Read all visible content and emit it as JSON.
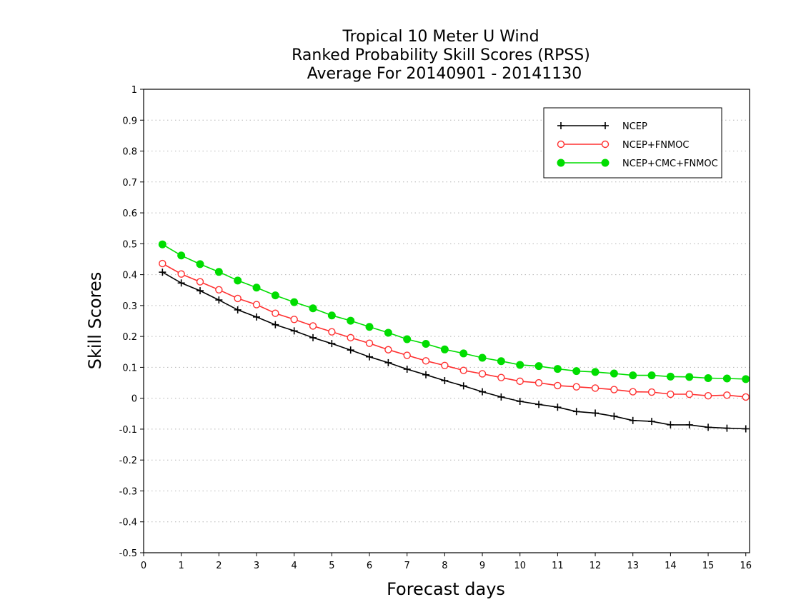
{
  "chart_data": {
    "type": "line",
    "title_lines": [
      "Tropical 10 Meter U Wind",
      "Ranked Probability Skill Scores (RPSS)",
      "Average For 20140901 - 20141130"
    ],
    "xlabel": "Forecast days",
    "ylabel": "Skill Scores",
    "xlim": [
      0,
      16.1
    ],
    "ylim": [
      -0.5,
      1
    ],
    "x_ticks": [
      0,
      1,
      2,
      3,
      4,
      5,
      6,
      7,
      8,
      9,
      10,
      11,
      12,
      13,
      14,
      15,
      16
    ],
    "y_ticks": [
      -0.5,
      -0.4,
      -0.3,
      -0.2,
      -0.1,
      0,
      0.1,
      0.2,
      0.3,
      0.4,
      0.5,
      0.6,
      0.7,
      0.8,
      0.9,
      1
    ],
    "y_tick_labels": [
      "-0.5",
      "-0.4",
      "-0.3",
      "-0.2",
      "-0.1",
      "0",
      "0.1",
      "0.2",
      "0.3",
      "0.4",
      "0.5",
      "0.6",
      "0.7",
      "0.8",
      "0.9",
      "1"
    ],
    "grid": "horizontal-dotted",
    "legend_position": "top-right",
    "x": [
      0.5,
      1,
      1.5,
      2,
      2.5,
      3,
      3.5,
      4,
      4.5,
      5,
      5.5,
      6,
      6.5,
      7,
      7.5,
      8,
      8.5,
      9,
      9.5,
      10,
      10.5,
      11,
      11.5,
      12,
      12.5,
      13,
      13.5,
      14,
      14.5,
      15,
      15.5,
      16
    ],
    "series": [
      {
        "name": "NCEP",
        "color": "#000000",
        "marker": "plus",
        "values": [
          0.408,
          0.373,
          0.348,
          0.318,
          0.286,
          0.263,
          0.238,
          0.218,
          0.196,
          0.177,
          0.156,
          0.134,
          0.115,
          0.094,
          0.076,
          0.057,
          0.04,
          0.021,
          0.004,
          -0.01,
          -0.02,
          -0.029,
          -0.043,
          -0.048,
          -0.058,
          -0.072,
          -0.075,
          -0.086,
          -0.086,
          -0.094,
          -0.097,
          -0.099
        ]
      },
      {
        "name": "NCEP+FNMOC",
        "color": "#ff3030",
        "marker": "open-circle",
        "values": [
          0.436,
          0.402,
          0.377,
          0.351,
          0.323,
          0.303,
          0.275,
          0.255,
          0.234,
          0.215,
          0.196,
          0.178,
          0.157,
          0.139,
          0.121,
          0.106,
          0.09,
          0.079,
          0.067,
          0.055,
          0.05,
          0.041,
          0.037,
          0.033,
          0.028,
          0.021,
          0.02,
          0.013,
          0.013,
          0.008,
          0.01,
          0.004
        ]
      },
      {
        "name": "NCEP+CMC+FNMOC",
        "color": "#00dd00",
        "marker": "filled-circle",
        "values": [
          0.498,
          0.462,
          0.434,
          0.409,
          0.381,
          0.358,
          0.333,
          0.311,
          0.291,
          0.268,
          0.251,
          0.231,
          0.212,
          0.191,
          0.176,
          0.158,
          0.145,
          0.131,
          0.12,
          0.108,
          0.104,
          0.095,
          0.088,
          0.085,
          0.08,
          0.074,
          0.074,
          0.07,
          0.069,
          0.065,
          0.064,
          0.062
        ]
      }
    ]
  }
}
